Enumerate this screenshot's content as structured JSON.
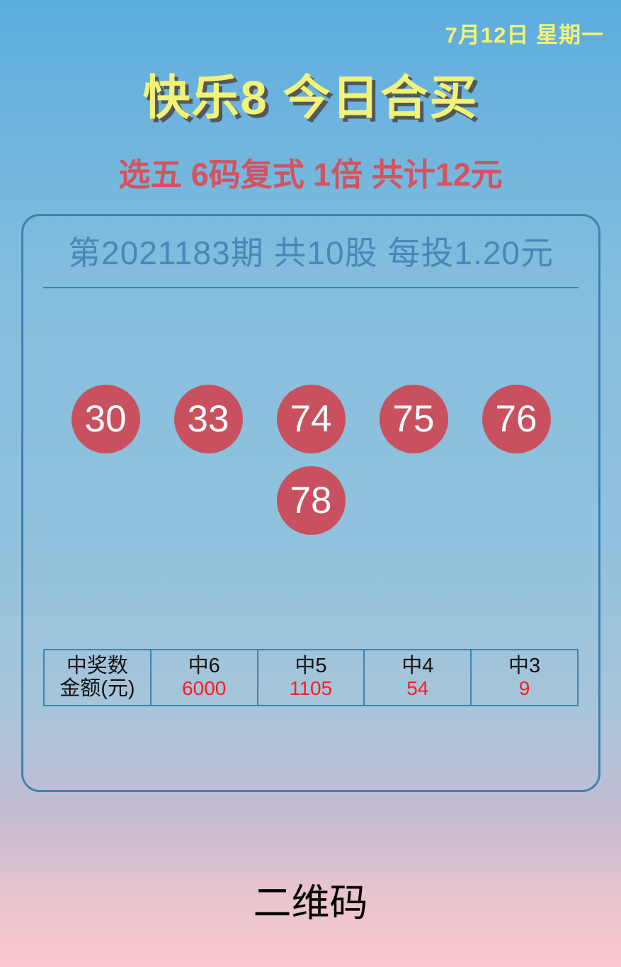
{
  "header": {
    "date": "7月12日 星期一",
    "title": "快乐8 今日合买",
    "subtitle": "选五 6码复式 1倍 共计12元"
  },
  "card": {
    "draw_info": "第2021183期 共10股 每投1.20元",
    "numbers_row1": [
      "30",
      "33",
      "74",
      "75",
      "76"
    ],
    "numbers_row2": [
      "78"
    ],
    "prize_table": {
      "label_top": "中奖数",
      "label_bottom": "金额(元)",
      "columns": [
        {
          "label": "中6",
          "value": "6000"
        },
        {
          "label": "中5",
          "value": "1105"
        },
        {
          "label": "中4",
          "value": "54"
        },
        {
          "label": "中3",
          "value": "9"
        }
      ]
    }
  },
  "footer": {
    "qr_label": "二维码"
  },
  "colors": {
    "yellow": "#f2f376",
    "shadow-gray": "#54585c",
    "red-accent": "#d5525f",
    "ball-red": "#c9505e",
    "blue-text": "#4788b8",
    "border-blue": "#3f82b0",
    "value-red": "#fe1d1d",
    "ink": "#111111"
  }
}
